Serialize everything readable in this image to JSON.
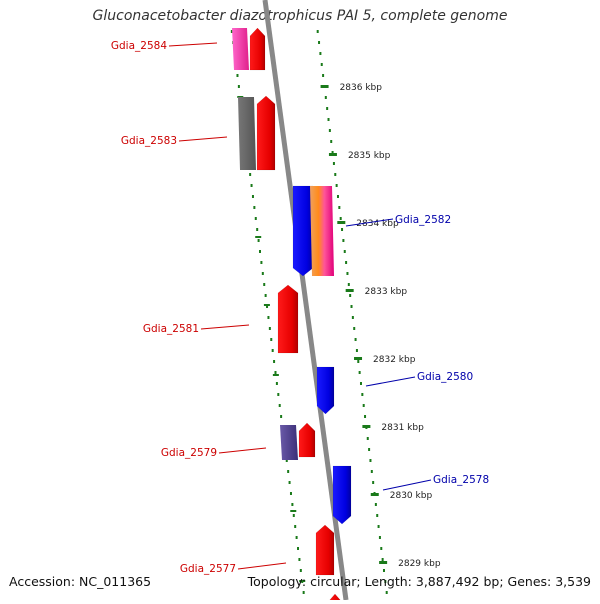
{
  "title": "Gluconacetobacter diazotrophicus PAI 5, complete genome",
  "footer": {
    "accession": "Accession: NC_011365",
    "summary": "Topology: circular; Length: 3,887,492 bp; Genes: 3,539"
  },
  "colors": {
    "forward_gene": "#ff0000",
    "reverse_gene": "#0000ff",
    "backbone": "#888888",
    "scale_dots": "#1a7a1a",
    "forward_label": "#cc0000",
    "reverse_label": "#0000aa"
  },
  "scale_ticks": [
    {
      "label": "2836 kbp"
    },
    {
      "label": "2835 kbp"
    },
    {
      "label": "2834 kbp"
    },
    {
      "label": "2833 kbp"
    },
    {
      "label": "2832 kbp"
    },
    {
      "label": "2831 kbp"
    },
    {
      "label": "2830 kbp"
    },
    {
      "label": "2829 kbp"
    }
  ],
  "genes": [
    {
      "label": "Gdia_2584",
      "strand": "forward"
    },
    {
      "label": "Gdia_2583",
      "strand": "forward"
    },
    {
      "label": "Gdia_2582",
      "strand": "reverse"
    },
    {
      "label": "Gdia_2581",
      "strand": "forward"
    },
    {
      "label": "Gdia_2580",
      "strand": "reverse"
    },
    {
      "label": "Gdia_2579",
      "strand": "forward"
    },
    {
      "label": "Gdia_2578",
      "strand": "reverse"
    },
    {
      "label": "Gdia_2577",
      "strand": "forward"
    }
  ]
}
